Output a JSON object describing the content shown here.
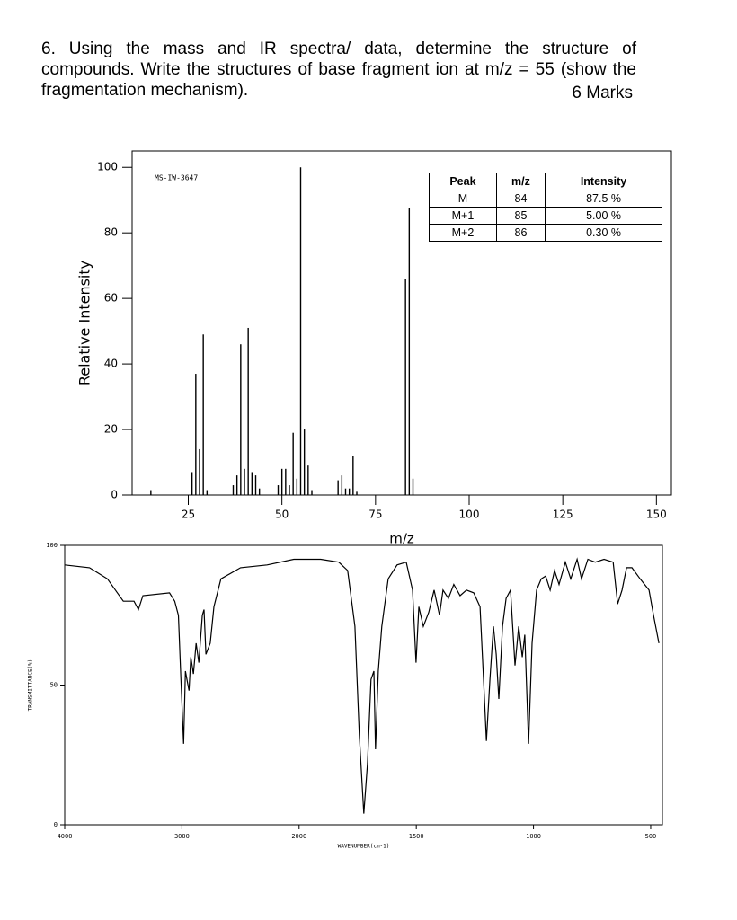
{
  "question": {
    "text": "6. Using the mass and IR spectra/ data, determine the structure of compounds. Write the structures of base fragment ion at m/z = 55 (show the fragmentation mechanism).",
    "marks": "6 Marks"
  },
  "chart_data": [
    {
      "type": "bar",
      "annotation": "MS-IW-3647",
      "x_label": "m/z",
      "y_label": "Relative Intensity",
      "color": "#000000",
      "x": [
        15,
        26,
        27,
        28,
        29,
        30,
        37,
        38,
        39,
        40,
        41,
        42,
        43,
        44,
        49,
        50,
        51,
        52,
        53,
        54,
        55,
        56,
        57,
        58,
        65,
        66,
        67,
        68,
        69,
        70,
        83,
        84,
        85
      ],
      "values": [
        1.5,
        7,
        37,
        14,
        49,
        1.5,
        3,
        6,
        46,
        8,
        51,
        7,
        6,
        2,
        3,
        8,
        8,
        3,
        19,
        5,
        100,
        20,
        9,
        1.5,
        4.5,
        6,
        2,
        2,
        12,
        1,
        66,
        87.5,
        5
      ],
      "xlim": [
        10,
        154
      ],
      "ylim": [
        0,
        105
      ],
      "xticks": [
        25,
        50,
        75,
        100,
        125,
        150
      ],
      "yticks": [
        0,
        20,
        40,
        60,
        80,
        100
      ],
      "table": {
        "columns": [
          "Peak",
          "m/z",
          "Intensity"
        ],
        "rows": [
          [
            "M",
            84,
            "87.5 %"
          ],
          [
            "M+1",
            85,
            "5.00 %"
          ],
          [
            "M+2",
            86,
            "0.30 %"
          ]
        ]
      }
    },
    {
      "type": "line",
      "x_label": "WAVENUMBER(cm-1)",
      "y_label": "TRANSMITTANCE(%)",
      "color": "#000000",
      "x": [
        4000,
        3788,
        3636,
        3500,
        3409,
        3371,
        3333,
        3106,
        3061,
        3030,
        3008,
        2985,
        2970,
        2939,
        2924,
        2902,
        2879,
        2856,
        2826,
        2811,
        2795,
        2758,
        2727,
        2667,
        2500,
        2273,
        2045,
        1908,
        1831,
        1793,
        1762,
        1743,
        1724,
        1708,
        1693,
        1681,
        1674,
        1662,
        1647,
        1620,
        1582,
        1543,
        1516,
        1501,
        1489,
        1470,
        1447,
        1424,
        1401,
        1386,
        1363,
        1340,
        1313,
        1286,
        1255,
        1228,
        1213,
        1201,
        1186,
        1171,
        1159,
        1148,
        1132,
        1117,
        1098,
        1079,
        1063,
        1048,
        1037,
        1021,
        1006,
        987,
        967,
        948,
        929,
        910,
        891,
        864,
        841,
        814,
        795,
        768,
        737,
        699,
        660,
        641,
        622,
        603,
        580,
        545,
        507,
        488,
        465
      ],
      "values": [
        93,
        92,
        88,
        80,
        80,
        77,
        82,
        83,
        80,
        75,
        52,
        29,
        55,
        48,
        60,
        54,
        65,
        58,
        75,
        77,
        61,
        65,
        78,
        88,
        92,
        93,
        95,
        95,
        94,
        91,
        71,
        32,
        4,
        22,
        52,
        55,
        27,
        55,
        71,
        88,
        93,
        94,
        84,
        58,
        78,
        71,
        76,
        84,
        75,
        84,
        81,
        86,
        82,
        84,
        83,
        78,
        52,
        30,
        52,
        71,
        61,
        45,
        71,
        81,
        84,
        57,
        71,
        60,
        68,
        29,
        65,
        84,
        88,
        89,
        84,
        91,
        86,
        94,
        88,
        95,
        88,
        95,
        94,
        95,
        94,
        79,
        84,
        92,
        92,
        88,
        84,
        75,
        65
      ],
      "xlim": [
        4000,
        450
      ],
      "ylim": [
        0,
        100
      ],
      "xticks": [
        4000,
        3000,
        2000,
        1500,
        1000,
        500
      ],
      "yticks": [
        0,
        50,
        100
      ]
    }
  ]
}
